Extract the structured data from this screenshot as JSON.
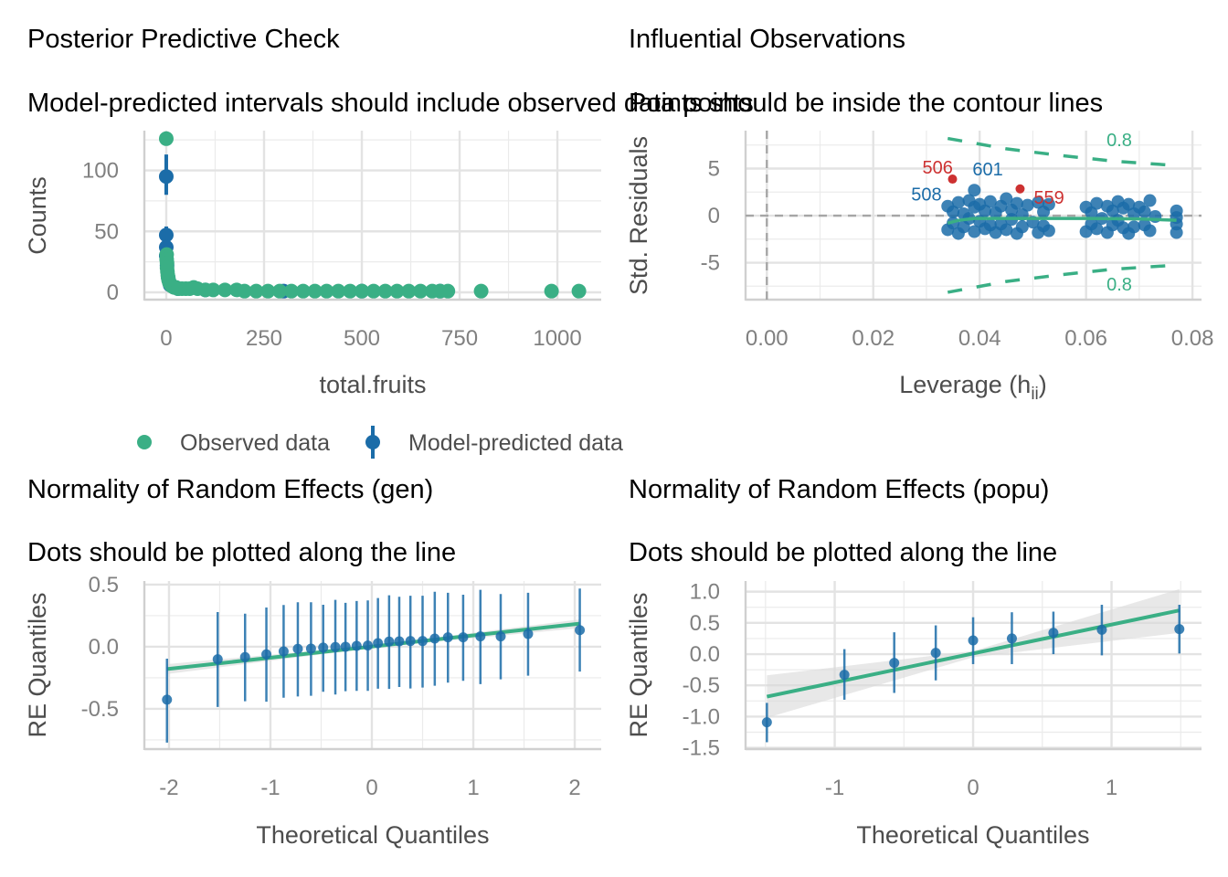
{
  "colors": {
    "green": "#3aaf85",
    "blue": "#1b6ca8",
    "red": "#cd3131",
    "grid": "#ebebeb",
    "band": "#d9d9d9"
  },
  "legend": {
    "observed": "Observed data",
    "predicted": "Model-predicted data",
    "placement": "bottom"
  },
  "chart_data": [
    {
      "type": "scatter",
      "title": "Posterior Predictive Check",
      "subtitle": "Model-predicted intervals should include observed data points",
      "xlabel": "total.fruits",
      "ylabel": "Counts",
      "xlim": [
        -56,
        1112
      ],
      "ylim": [
        -6,
        132.6
      ],
      "xticks": [
        0,
        250,
        500,
        750,
        1000
      ],
      "xtick_labels": [
        "0",
        "250",
        "500",
        "750",
        "1000"
      ],
      "yticks": [
        0,
        50,
        100
      ],
      "ytick_labels": [
        "0",
        "50",
        "100"
      ],
      "grid": true,
      "observed": [
        [
          0,
          126
        ],
        [
          1,
          31
        ],
        [
          1,
          27
        ],
        [
          2,
          24
        ],
        [
          2,
          20
        ],
        [
          3,
          17
        ],
        [
          4,
          14
        ],
        [
          5,
          12
        ],
        [
          6,
          10
        ],
        [
          8,
          8
        ],
        [
          10,
          7
        ],
        [
          12,
          6
        ],
        [
          15,
          5
        ],
        [
          20,
          4
        ],
        [
          25,
          4
        ],
        [
          30,
          3
        ],
        [
          40,
          3
        ],
        [
          50,
          3
        ],
        [
          60,
          3
        ],
        [
          70,
          4
        ],
        [
          80,
          3
        ],
        [
          100,
          2
        ],
        [
          120,
          2
        ],
        [
          150,
          2
        ],
        [
          180,
          2
        ],
        [
          200,
          1
        ],
        [
          230,
          1
        ],
        [
          260,
          1
        ],
        [
          290,
          1
        ],
        [
          320,
          1
        ],
        [
          350,
          1
        ],
        [
          380,
          1
        ],
        [
          410,
          1
        ],
        [
          440,
          1
        ],
        [
          470,
          1
        ],
        [
          500,
          1
        ],
        [
          530,
          1
        ],
        [
          560,
          1
        ],
        [
          590,
          1
        ],
        [
          620,
          1
        ],
        [
          650,
          1
        ],
        [
          680,
          1
        ],
        [
          700,
          1
        ],
        [
          720,
          1
        ],
        [
          805,
          1
        ],
        [
          985,
          1
        ],
        [
          1055,
          1
        ]
      ],
      "predicted": [
        [
          0,
          95,
          80,
          113
        ],
        [
          0,
          47,
          41,
          54
        ],
        [
          0,
          37,
          32,
          42
        ],
        [
          0,
          30,
          25,
          35
        ],
        [
          2,
          22,
          18,
          26
        ],
        [
          5,
          12,
          10,
          14
        ],
        [
          10,
          6,
          5,
          8
        ],
        [
          30,
          3,
          2,
          4
        ],
        [
          100,
          2,
          1,
          3
        ],
        [
          300,
          1,
          0,
          2
        ],
        [
          500,
          1,
          0,
          2
        ],
        [
          700,
          1,
          0,
          2
        ]
      ]
    },
    {
      "type": "scatter",
      "title": "Influential Observations",
      "subtitle": "Points should be inside the contour lines",
      "xlabel": "Leverage (h",
      "xlabel_sub": "ii",
      "xlabel_end": ")",
      "ylabel": "Std. Residuals",
      "xlim": [
        -0.004,
        0.0817
      ],
      "ylim": [
        -8.93,
        9.03
      ],
      "xticks": [
        0,
        0.02,
        0.04,
        0.06,
        0.08
      ],
      "xtick_labels": [
        "0.00",
        "0.02",
        "0.04",
        "0.06",
        "0.08"
      ],
      "yticks": [
        -5,
        0,
        5
      ],
      "ytick_labels": [
        "-5",
        "0",
        "5"
      ],
      "grid": true,
      "points": [
        [
          0.034,
          1.0
        ],
        [
          0.034,
          -1.5
        ],
        [
          0.035,
          0.4
        ],
        [
          0.035,
          -0.8
        ],
        [
          0.036,
          1.4
        ],
        [
          0.036,
          -1.9
        ],
        [
          0.037,
          0.2
        ],
        [
          0.037,
          -1.2
        ],
        [
          0.038,
          1.6
        ],
        [
          0.038,
          -0.3
        ],
        [
          0.039,
          0.9
        ],
        [
          0.039,
          -1.7
        ],
        [
          0.039,
          2.7
        ],
        [
          0.04,
          -0.6
        ],
        [
          0.04,
          1.2
        ],
        [
          0.041,
          -1.4
        ],
        [
          0.041,
          0.5
        ],
        [
          0.042,
          -1.0
        ],
        [
          0.042,
          1.5
        ],
        [
          0.043,
          -1.8
        ],
        [
          0.043,
          0.3
        ],
        [
          0.044,
          1.0
        ],
        [
          0.044,
          -0.9
        ],
        [
          0.045,
          1.8
        ],
        [
          0.045,
          -1.5
        ],
        [
          0.046,
          0.6
        ],
        [
          0.046,
          -0.4
        ],
        [
          0.047,
          1.3
        ],
        [
          0.047,
          -1.9
        ],
        [
          0.048,
          0.1
        ],
        [
          0.048,
          -1.2
        ],
        [
          0.049,
          1.1
        ],
        [
          0.05,
          -0.7
        ],
        [
          0.051,
          1.4
        ],
        [
          0.051,
          -1.8
        ],
        [
          0.052,
          0.4
        ],
        [
          0.052,
          -1.1
        ],
        [
          0.053,
          1.2
        ],
        [
          0.053,
          -1.6
        ],
        [
          0.06,
          0.9
        ],
        [
          0.06,
          -1.7
        ],
        [
          0.061,
          0.3
        ],
        [
          0.061,
          -0.9
        ],
        [
          0.062,
          1.3
        ],
        [
          0.062,
          -1.4
        ],
        [
          0.063,
          -0.3
        ],
        [
          0.064,
          1.0
        ],
        [
          0.064,
          -1.8
        ],
        [
          0.065,
          0.5
        ],
        [
          0.065,
          -1.0
        ],
        [
          0.066,
          1.5
        ],
        [
          0.066,
          -0.5
        ],
        [
          0.067,
          0.8
        ],
        [
          0.067,
          -1.3
        ],
        [
          0.068,
          1.2
        ],
        [
          0.068,
          -1.9
        ],
        [
          0.069,
          0.2
        ],
        [
          0.069,
          -1.2
        ],
        [
          0.07,
          0.9
        ],
        [
          0.071,
          -1.0
        ],
        [
          0.071,
          0.4
        ],
        [
          0.072,
          1.6
        ],
        [
          0.072,
          -1.6
        ],
        [
          0.073,
          -0.1
        ],
        [
          0.077,
          0.5
        ],
        [
          0.077,
          -0.9
        ],
        [
          0.077,
          -1.8
        ],
        [
          0.077,
          -0.2
        ]
      ],
      "flagged": [
        {
          "id": "506",
          "x": 0.0349,
          "y": 3.88,
          "influential": true
        },
        {
          "id": "559",
          "x": 0.0476,
          "y": 2.84,
          "influential": true
        },
        {
          "id": "601",
          "x": 0.0378,
          "y": 2.9,
          "influential": false
        },
        {
          "id": "508",
          "x": 0.034,
          "y": 1.0,
          "influential": false
        }
      ],
      "smooth": [
        [
          0.034,
          -0.8
        ],
        [
          0.036,
          -0.5
        ],
        [
          0.039,
          -0.3
        ],
        [
          0.05,
          -0.3
        ],
        [
          0.06,
          -0.3
        ],
        [
          0.07,
          -0.35
        ],
        [
          0.077,
          -0.5
        ]
      ],
      "contour_level": "0.8",
      "contour_upper": [
        [
          0.034,
          8.2
        ],
        [
          0.045,
          7.1
        ],
        [
          0.055,
          6.4
        ],
        [
          0.065,
          5.8
        ],
        [
          0.0775,
          5.3
        ]
      ],
      "contour_lower": [
        [
          0.034,
          -8.15
        ],
        [
          0.045,
          -7.0
        ],
        [
          0.055,
          -6.3
        ],
        [
          0.065,
          -5.7
        ],
        [
          0.0775,
          -5.24
        ]
      ]
    },
    {
      "type": "scatter",
      "title": "Normality of Random Effects (gen)",
      "subtitle": "Dots should be plotted along the line",
      "xlabel": "Theoretical Quantiles",
      "ylabel": "RE Quantiles",
      "xlim": [
        -2.243,
        2.261
      ],
      "ylim": [
        -0.824,
        0.529
      ],
      "xticks": [
        -2,
        -1,
        0,
        1,
        2
      ],
      "xtick_labels": [
        "-2",
        "-1",
        "0",
        "1",
        "2"
      ],
      "yticks": [
        -0.5,
        0,
        0.5
      ],
      "ytick_labels": [
        "-0.5",
        "0.0",
        "0.5"
      ],
      "grid": true,
      "points": [
        [
          -2.02,
          -0.426,
          -0.772,
          -0.096
        ],
        [
          -1.52,
          -0.101,
          -0.485,
          0.279
        ],
        [
          -1.25,
          -0.083,
          -0.439,
          0.266
        ],
        [
          -1.04,
          -0.061,
          -0.443,
          0.316
        ],
        [
          -0.87,
          -0.037,
          -0.41,
          0.336
        ],
        [
          -0.73,
          -0.017,
          -0.4,
          0.358
        ],
        [
          -0.6,
          -0.015,
          -0.395,
          0.358
        ],
        [
          -0.48,
          -0.007,
          -0.363,
          0.338
        ],
        [
          -0.36,
          -0.002,
          -0.385,
          0.377
        ],
        [
          -0.26,
          0.0,
          -0.358,
          0.353
        ],
        [
          -0.15,
          0.007,
          -0.355,
          0.368
        ],
        [
          -0.04,
          0.01,
          -0.355,
          0.373
        ],
        [
          0.06,
          0.029,
          -0.338,
          0.392
        ],
        [
          0.17,
          0.042,
          -0.34,
          0.414
        ],
        [
          0.27,
          0.044,
          -0.324,
          0.402
        ],
        [
          0.38,
          0.046,
          -0.336,
          0.41
        ],
        [
          0.5,
          0.046,
          -0.329,
          0.41
        ],
        [
          0.62,
          0.066,
          -0.314,
          0.443
        ],
        [
          0.75,
          0.076,
          -0.289,
          0.434
        ],
        [
          0.9,
          0.076,
          -0.274,
          0.419
        ],
        [
          1.07,
          0.083,
          -0.301,
          0.458
        ],
        [
          1.27,
          0.083,
          -0.262,
          0.424
        ],
        [
          1.54,
          0.103,
          -0.233,
          0.434
        ],
        [
          2.05,
          0.134,
          -0.2,
          0.468
        ]
      ],
      "fit_line": [
        [
          -2.02,
          -0.18
        ],
        [
          2.05,
          0.186
        ]
      ],
      "band": [
        [
          -2.02,
          -0.22,
          -0.14
        ],
        [
          0,
          -0.01,
          0.01
        ],
        [
          2.05,
          0.15,
          0.22
        ]
      ]
    },
    {
      "type": "scatter",
      "title": "Normality of Random Effects (popu)",
      "subtitle": "Dots should be plotted along the line",
      "xlabel": "Theoretical Quantiles",
      "ylabel": "RE Quantiles",
      "xlim": [
        -1.644,
        1.65
      ],
      "ylim": [
        -1.52,
        1.17
      ],
      "xticks": [
        -1,
        0,
        1
      ],
      "xtick_labels": [
        "-1",
        "0",
        "1"
      ],
      "yticks": [
        -1.5,
        -1,
        -0.5,
        0,
        0.5,
        1
      ],
      "ytick_labels": [
        "-1.5",
        "-1.0",
        "-0.5",
        "0.0",
        "0.5",
        "1.0"
      ],
      "grid": true,
      "points": [
        [
          -1.49,
          -1.09,
          -1.41,
          -0.78
        ],
        [
          -0.93,
          -0.33,
          -0.73,
          0.08
        ],
        [
          -0.57,
          -0.14,
          -0.62,
          0.35
        ],
        [
          -0.27,
          0.02,
          -0.42,
          0.46
        ],
        [
          0.0,
          0.22,
          -0.16,
          0.59
        ],
        [
          0.28,
          0.25,
          -0.16,
          0.67
        ],
        [
          0.58,
          0.34,
          0.0,
          0.68
        ],
        [
          0.93,
          0.39,
          -0.02,
          0.79
        ],
        [
          1.49,
          0.4,
          0.01,
          0.79
        ]
      ],
      "fit_line": [
        [
          -1.49,
          -0.68
        ],
        [
          1.49,
          0.7
        ]
      ],
      "band": [
        [
          -1.49,
          -1.02,
          -0.34
        ],
        [
          0,
          -0.05,
          0.05
        ],
        [
          1.49,
          0.34,
          1.04
        ]
      ]
    }
  ]
}
